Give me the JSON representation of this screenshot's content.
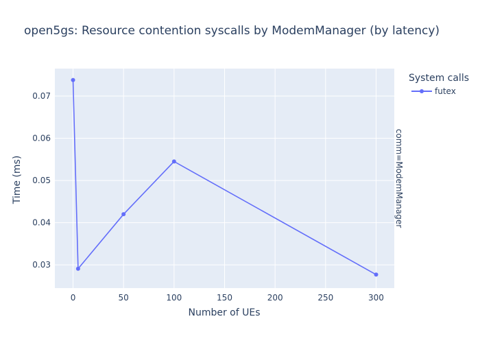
{
  "chart_data": {
    "type": "line",
    "title": "open5gs: Resource contention syscalls by ModemManager (by latency)",
    "xlabel": "Number of UEs",
    "ylabel": "Time (ms)",
    "xlim": [
      -18,
      318
    ],
    "ylim": [
      0.0245,
      0.0765
    ],
    "x_ticks": [
      0,
      50,
      100,
      150,
      200,
      250,
      300
    ],
    "y_ticks": [
      0.03,
      0.04,
      0.05,
      0.06,
      0.07
    ],
    "legend_title": "System calls",
    "legend_position": "top-right",
    "facet_label": "comm=ModemManager",
    "grid": true,
    "colors": {
      "background": "#e5ecf6",
      "grid": "#ffffff",
      "series": "#636efa"
    },
    "series": [
      {
        "name": "futex",
        "x": [
          0,
          5,
          50,
          100,
          300
        ],
        "y": [
          0.0738,
          0.0291,
          0.042,
          0.0545,
          0.0277
        ]
      }
    ]
  }
}
